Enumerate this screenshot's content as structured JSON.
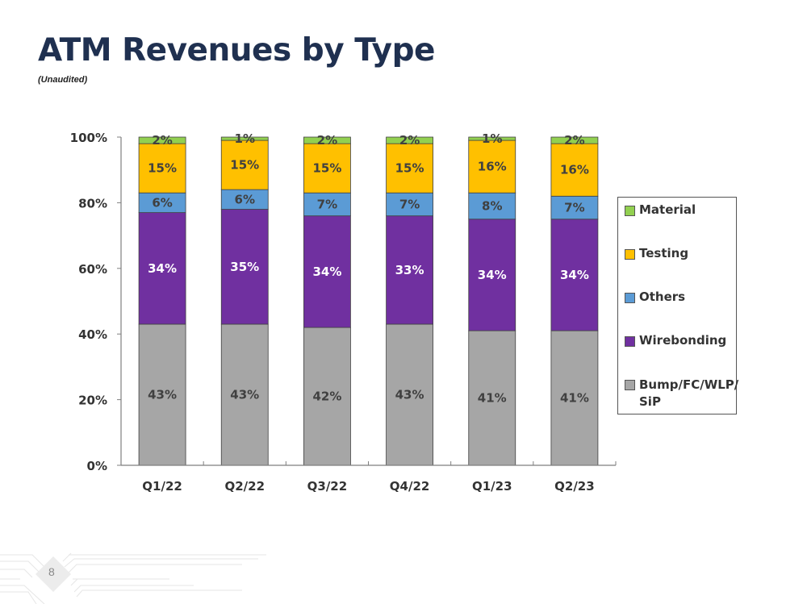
{
  "header": {
    "title": "ATM Revenues by Type",
    "subtitle": "(Unaudited)"
  },
  "footer": {
    "page_number": "8"
  },
  "colors": {
    "Material": "#92d050",
    "Testing": "#ffc000",
    "Others": "#5b9bd5",
    "Wirebonding": "#7030a0",
    "Bump/FC/WLP/SiP": "#a6a6a6",
    "title": "#1f3050"
  },
  "legend": {
    "items": [
      {
        "label": "Material",
        "series": "Material"
      },
      {
        "label": "Testing",
        "series": "Testing"
      },
      {
        "label": "Others",
        "series": "Others"
      },
      {
        "label": "Wirebonding",
        "series": "Wirebonding"
      },
      {
        "label": "Bump/FC/WLP/ SiP",
        "series": "Bump/FC/WLP/SiP"
      }
    ]
  },
  "chart_data": {
    "type": "bar",
    "stacked": true,
    "title": "ATM Revenues by Type",
    "subtitle": "(Unaudited)",
    "xlabel": "",
    "ylabel": "",
    "categories": [
      "Q1/22",
      "Q2/22",
      "Q3/22",
      "Q4/22",
      "Q1/23",
      "Q2/23"
    ],
    "ylim": [
      0,
      100
    ],
    "yticks": [
      "0%",
      "20%",
      "40%",
      "60%",
      "80%",
      "100%"
    ],
    "ytick_values": [
      0,
      20,
      40,
      60,
      80,
      100
    ],
    "grid": false,
    "legend_position": "right",
    "series": [
      {
        "name": "Bump/FC/WLP/SiP",
        "values": [
          43,
          43,
          42,
          43,
          41,
          41
        ],
        "labels": [
          "43%",
          "43%",
          "42%",
          "43%",
          "41%",
          "41%"
        ],
        "label_color": "#404040"
      },
      {
        "name": "Wirebonding",
        "values": [
          34,
          35,
          34,
          33,
          34,
          34
        ],
        "labels": [
          "34%",
          "35%",
          "34%",
          "33%",
          "34%",
          "34%"
        ],
        "label_color": "#ffffff"
      },
      {
        "name": "Others",
        "values": [
          6,
          6,
          7,
          7,
          8,
          7
        ],
        "labels": [
          "6%",
          "6%",
          "7%",
          "7%",
          "8%",
          "7%"
        ],
        "label_color": "#404040"
      },
      {
        "name": "Testing",
        "values": [
          15,
          15,
          15,
          15,
          16,
          16
        ],
        "labels": [
          "15%",
          "15%",
          "15%",
          "15%",
          "16%",
          "16%"
        ],
        "label_color": "#404040"
      },
      {
        "name": "Material",
        "values": [
          2,
          1,
          2,
          2,
          1,
          2
        ],
        "labels": [
          "2%",
          "1%",
          "2%",
          "2%",
          "1%",
          "2%"
        ],
        "label_color": "#404040"
      }
    ]
  }
}
